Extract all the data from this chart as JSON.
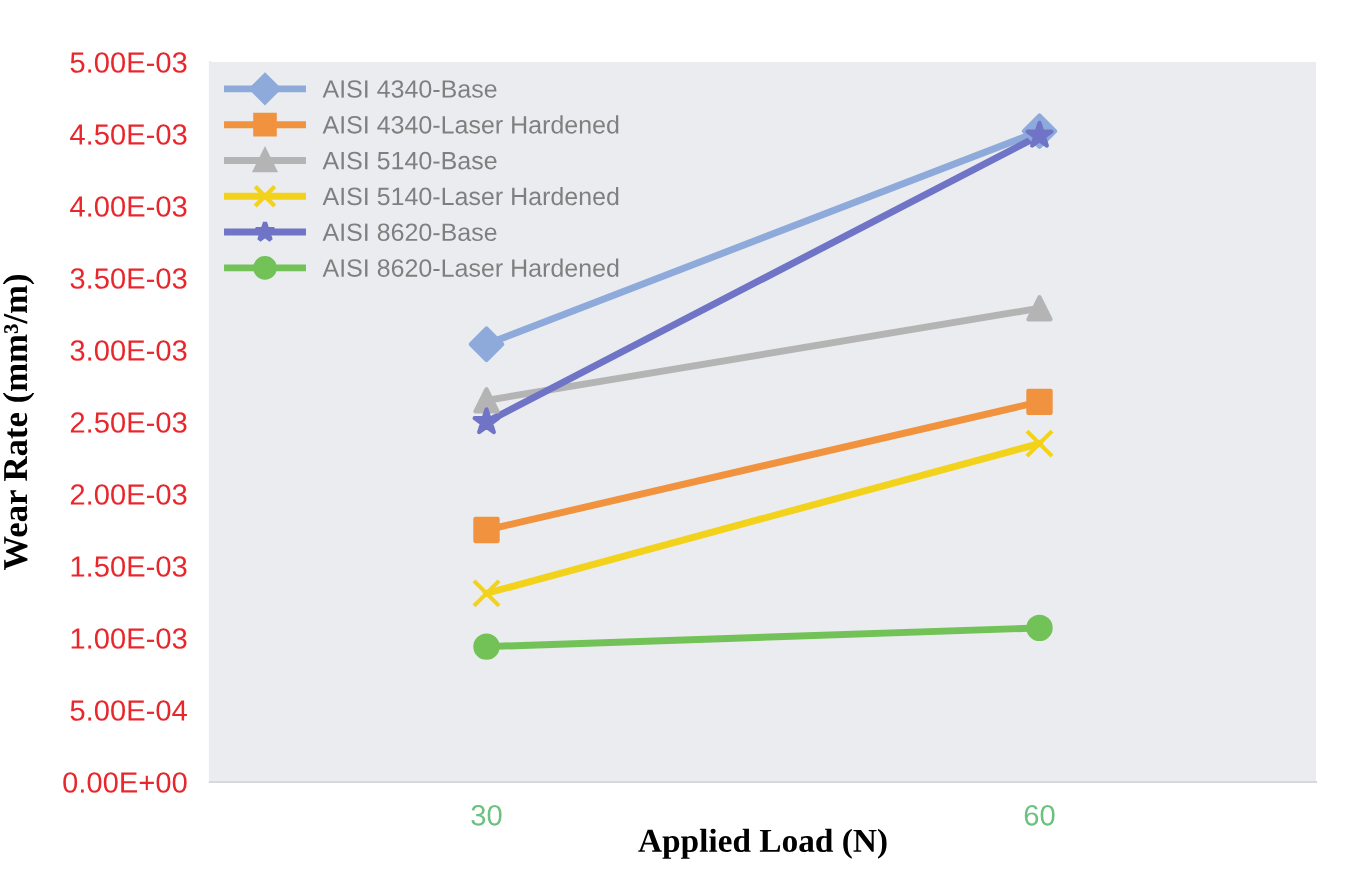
{
  "chart_data": {
    "type": "line",
    "xlabel": "Applied Load (N)",
    "ylabel": "Wear Rate (mm³/m)",
    "x": [
      30,
      60
    ],
    "xlim": [
      15,
      75
    ],
    "xticks": [
      30,
      60
    ],
    "series": [
      {
        "name": "AISI 4340-Base",
        "color": "#8eaadb",
        "marker": "diamond",
        "values": [
          0.00304,
          0.00452
        ]
      },
      {
        "name": "AISI 4340-Laser Hardened",
        "color": "#f0923e",
        "marker": "square",
        "values": [
          0.00175,
          0.00264
        ]
      },
      {
        "name": "AISI 5140-Base",
        "color": "#b4b4b4",
        "marker": "triangle",
        "values": [
          0.00265,
          0.00329
        ]
      },
      {
        "name": "AISI 5140-Laser Hardened",
        "color": "#f2d21a",
        "marker": "cross",
        "values": [
          0.00131,
          0.00235
        ]
      },
      {
        "name": "AISI 8620-Base",
        "color": "#6f74c6",
        "marker": "star",
        "values": [
          0.0025,
          0.00449
        ]
      },
      {
        "name": "AISI 8620-Laser Hardened",
        "color": "#72c258",
        "marker": "circle",
        "values": [
          0.00094,
          0.00107
        ]
      }
    ],
    "ylim": [
      0,
      0.005
    ],
    "yticks": [
      {
        "value": 0,
        "label": "0.00E+00"
      },
      {
        "value": 0.0005,
        "label": "5.00E-04"
      },
      {
        "value": 0.001,
        "label": "1.00E-03"
      },
      {
        "value": 0.0015,
        "label": "1.50E-03"
      },
      {
        "value": 0.002,
        "label": "2.00E-03"
      },
      {
        "value": 0.0025,
        "label": "2.50E-03"
      },
      {
        "value": 0.003,
        "label": "3.00E-03"
      },
      {
        "value": 0.0035,
        "label": "3.50E-03"
      },
      {
        "value": 0.004,
        "label": "4.00E-03"
      },
      {
        "value": 0.0045,
        "label": "4.50E-03"
      },
      {
        "value": 0.005,
        "label": "5.00E-03"
      }
    ],
    "legend": "top left",
    "line_style": "solid"
  }
}
